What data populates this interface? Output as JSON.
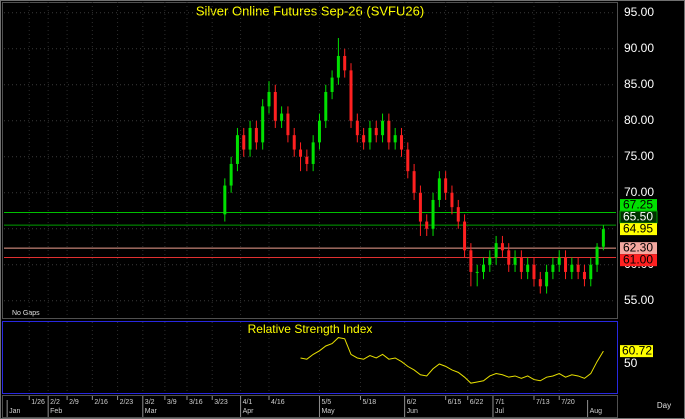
{
  "chart_data": {
    "type": "candlestick",
    "title": "Silver Online Futures Sep-26 (SVFU26)",
    "note": "No Gaps",
    "xlabel": "Day",
    "x": [
      35,
      36,
      37,
      38,
      39,
      40,
      41,
      42,
      43,
      44,
      45,
      46,
      47,
      48,
      49,
      50,
      51,
      52,
      53,
      54,
      55,
      56,
      57,
      58,
      59,
      60,
      61,
      62,
      63,
      64,
      65,
      66,
      67,
      68,
      69,
      70,
      71,
      72,
      73,
      74,
      75,
      76,
      77,
      78,
      79,
      80,
      81,
      82,
      83,
      84,
      85,
      86,
      87,
      88,
      89,
      90,
      91,
      92,
      93,
      94,
      95
    ],
    "open": [
      67,
      71,
      74,
      78,
      76,
      79,
      77,
      82,
      84,
      80,
      81,
      78,
      76,
      75,
      74,
      77,
      80,
      84,
      86,
      89,
      87,
      80,
      78,
      77,
      79,
      78,
      80,
      77,
      78,
      76,
      73,
      70,
      66,
      65,
      69,
      72,
      70,
      68,
      66,
      62,
      59,
      59,
      60,
      61,
      63,
      62,
      60,
      61,
      59,
      60,
      58,
      57,
      59,
      60,
      61,
      59,
      60,
      59,
      58,
      60,
      62.5
    ],
    "high": [
      72,
      75,
      79,
      79,
      80,
      80,
      83,
      85.5,
      85,
      82,
      82,
      79,
      77,
      76,
      78,
      81,
      85,
      87,
      91.5,
      90,
      88,
      81,
      79,
      80,
      80,
      81,
      81,
      79,
      79,
      77,
      74,
      71,
      67,
      70,
      73,
      73,
      71,
      69,
      67,
      63,
      60,
      61,
      62,
      64,
      64,
      63,
      62,
      62,
      61,
      61,
      59,
      60,
      61,
      62,
      62,
      61,
      61,
      60,
      61,
      63,
      65.5
    ],
    "low": [
      66,
      70,
      73,
      75,
      75,
      76,
      76,
      81,
      79,
      79,
      77,
      75,
      73,
      73,
      73,
      76,
      79,
      83,
      85,
      86,
      79,
      77,
      76,
      76,
      77,
      77,
      76,
      76,
      75,
      72,
      69,
      64,
      64,
      64,
      68,
      69,
      67,
      65,
      61,
      57,
      57,
      58,
      59,
      60,
      61,
      59,
      59,
      58,
      58,
      57,
      56,
      56,
      58,
      59,
      58,
      58,
      58,
      57,
      57,
      59,
      62
    ],
    "close": [
      71,
      74,
      78,
      76,
      79,
      77,
      82,
      84,
      80,
      81,
      78,
      76,
      75,
      74,
      77,
      80,
      84,
      86,
      89,
      87,
      80,
      78,
      77,
      79,
      78,
      80,
      77,
      78,
      76,
      73,
      70,
      66,
      65,
      69,
      72,
      70,
      68,
      66,
      62,
      59,
      59,
      60,
      61,
      63,
      62,
      60,
      61,
      59,
      60,
      58,
      57,
      59,
      60,
      61,
      59,
      60,
      59,
      58,
      60,
      62.5,
      64.95
    ],
    "up_color": "#00e000",
    "down_color": "#ff2020",
    "last_color": "#ffff00",
    "xlim": [
      0,
      97
    ],
    "ylim": [
      52.6,
      96.5
    ],
    "yticks": [
      {
        "value": 55,
        "label": "55.00"
      },
      {
        "value": 60,
        "label": "60.00"
      },
      {
        "value": 65,
        "label": "65.00"
      },
      {
        "value": 70,
        "label": "70.00"
      },
      {
        "value": 75,
        "label": "75.00"
      },
      {
        "value": 80,
        "label": "80.00"
      },
      {
        "value": 85,
        "label": "85.00"
      },
      {
        "value": 90,
        "label": "90.00"
      },
      {
        "value": 95,
        "label": "95.00"
      }
    ],
    "xticks": [
      {
        "value": 4,
        "label": "1/26"
      },
      {
        "value": 7,
        "label": "2/2"
      },
      {
        "value": 10,
        "label": "2/9"
      },
      {
        "value": 14,
        "label": "2/16"
      },
      {
        "value": 18,
        "label": "2/23"
      },
      {
        "value": 22,
        "label": "3/2"
      },
      {
        "value": 25.5,
        "label": "3/9"
      },
      {
        "value": 29,
        "label": "3/16"
      },
      {
        "value": 33,
        "label": "3/23"
      },
      {
        "value": 37.5,
        "label": "4/1"
      },
      {
        "value": 42,
        "label": "4/16"
      },
      {
        "value": 50,
        "label": "5/5"
      },
      {
        "value": 56.5,
        "label": "5/18"
      },
      {
        "value": 63.5,
        "label": "6/2"
      },
      {
        "value": 70,
        "label": "6/15"
      },
      {
        "value": 73.5,
        "label": "6/22"
      },
      {
        "value": 77.5,
        "label": "7/1"
      },
      {
        "value": 84,
        "label": "7/13"
      },
      {
        "value": 88,
        "label": "7/20"
      }
    ],
    "month_ticks": [
      {
        "value": 0.5,
        "label": "Jan"
      },
      {
        "value": 7,
        "label": "Feb"
      },
      {
        "value": 22,
        "label": "Mar"
      },
      {
        "value": 37.5,
        "label": "Apr"
      },
      {
        "value": 50,
        "label": "May"
      },
      {
        "value": 63.5,
        "label": "Jun"
      },
      {
        "value": 77.5,
        "label": "Jul"
      },
      {
        "value": 92.5,
        "label": "Aug"
      }
    ],
    "grid": true,
    "levels": [
      {
        "value": 67.25,
        "color": "#00c000",
        "label_color": "#00e000",
        "text_color": "#000000"
      },
      {
        "value": 65.5,
        "label": "65.50",
        "color": "#00a000",
        "label_color": "#003000",
        "text_color": "#ffffff"
      },
      {
        "value": 62.3,
        "label": "62.30",
        "color": "#f0a090",
        "label_color": "#f4a8a0",
        "text_color": "#000000"
      },
      {
        "value": 61,
        "label": "61.00",
        "color": "#e03030",
        "label_color": "#ff2020",
        "text_color": "#000000"
      }
    ],
    "indicator": {
      "title": "Relative Strength Index",
      "color": "#e8e000",
      "values": [
        null,
        null,
        null,
        null,
        null,
        null,
        null,
        null,
        null,
        null,
        null,
        null,
        55,
        54,
        58,
        61,
        65,
        67,
        72,
        71,
        58,
        55,
        54,
        57,
        55,
        58,
        54,
        55,
        52,
        48,
        45,
        41,
        40,
        46,
        50,
        48,
        45,
        43,
        39,
        34,
        35,
        36,
        40,
        42,
        41,
        39,
        40,
        38,
        40,
        37,
        36,
        39,
        40,
        42,
        39,
        41,
        40,
        38,
        42,
        52,
        60.72
      ],
      "ylim": [
        25.8,
        85
      ],
      "yticks": [
        50
      ]
    }
  }
}
